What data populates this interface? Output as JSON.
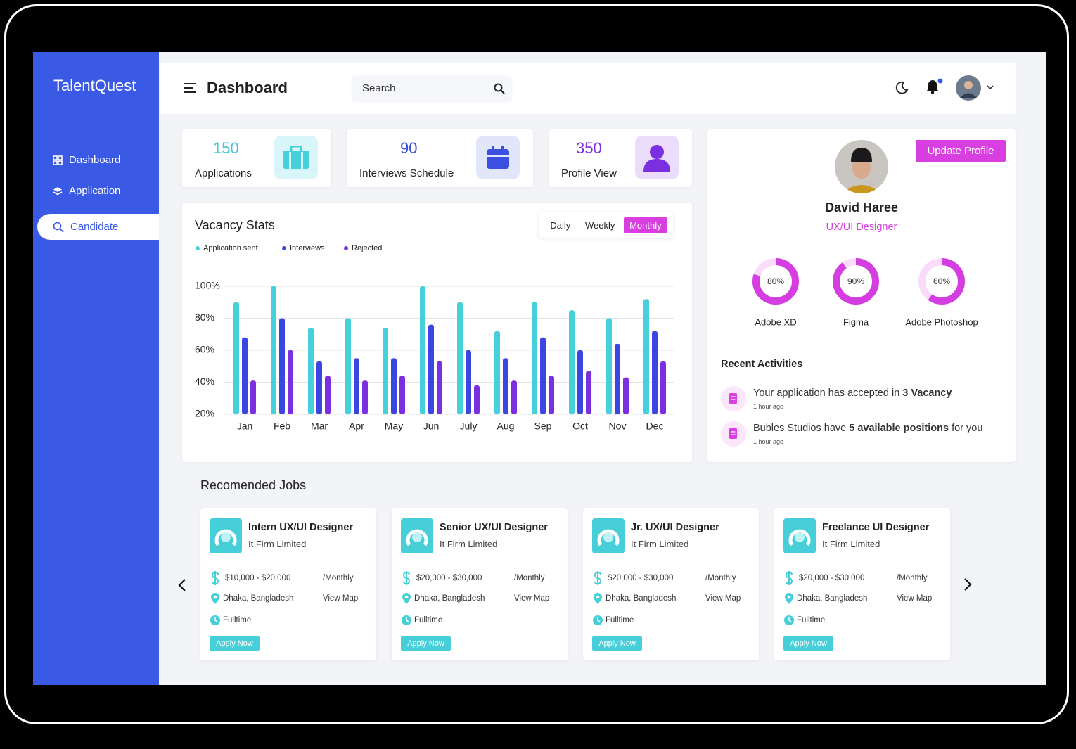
{
  "brand": "TalentQuest",
  "nav": [
    "Dashboard",
    "Application",
    "Candidate"
  ],
  "header": {
    "title": "Dashboard",
    "search": "Search"
  },
  "stats": [
    {
      "value": 150,
      "label": "Applications"
    },
    {
      "value": 90,
      "label": "Interviews Schedule"
    },
    {
      "value": 350,
      "label": "Profile View"
    }
  ],
  "chart_data": {
    "type": "bar",
    "title": "Vacancy Stats",
    "periods": [
      "Daily",
      "Weekly",
      "Monthly"
    ],
    "categories": [
      "Jan",
      "Feb",
      "Mar",
      "Apr",
      "May",
      "Jun",
      "July",
      "Aug",
      "Sep",
      "Oct",
      "Nov",
      "Dec"
    ],
    "series": [
      {
        "name": "Application sent",
        "color": "#45d0dc",
        "values": [
          90,
          100,
          74,
          80,
          74,
          100,
          90,
          72,
          90,
          85,
          80,
          92
        ]
      },
      {
        "name": "Interviews",
        "color": "#3d45e0",
        "values": [
          68,
          80,
          53,
          55,
          55,
          76,
          60,
          55,
          68,
          60,
          64,
          72
        ]
      },
      {
        "name": "Rejected",
        "color": "#7a2fe0",
        "values": [
          41,
          60,
          44,
          41,
          44,
          53,
          38,
          41,
          44,
          47,
          43,
          53
        ]
      }
    ],
    "ylim": [
      20,
      100
    ],
    "yticks": [
      {
        "value": 20,
        "label": "20%"
      },
      {
        "value": 40,
        "label": "40%"
      },
      {
        "value": 60,
        "label": "60%"
      },
      {
        "value": 80,
        "label": "80%"
      },
      {
        "value": 100,
        "label": "100%"
      }
    ],
    "grid": true
  },
  "profile": {
    "name": "David Haree",
    "role": "UX/UI Designer",
    "button": "Update Profile",
    "skills": [
      {
        "name": "Adobe XD",
        "value": 80,
        "label": "80%"
      },
      {
        "name": "Figma",
        "value": 90,
        "label": "90%"
      },
      {
        "name": "Adobe Photoshop",
        "value": 60,
        "label": "60%"
      }
    ]
  },
  "activities": {
    "title": "Recent Activities",
    "items": [
      {
        "text": "Your application has accepted in",
        "highlight": "3 Vacancy",
        "time": "1 hour ago"
      },
      {
        "text": "Bubles Studios have",
        "highlight": "5 available positions",
        "rest": "for you",
        "time": "1 hour ago"
      }
    ]
  },
  "jobs": {
    "title": "Recomended Jobs",
    "items": [
      {
        "title": "Intern UX/UI Designer",
        "company": "It Firm Limited",
        "salary": "$10,000 - $20,000",
        "period": "/Monthly",
        "location": "Dhaka, Bangladesh",
        "map": "View Map",
        "kind": "Fulltime",
        "button": "Apply Now"
      },
      {
        "title": "Senior UX/UI Designer",
        "company": "It Firm Limited",
        "salary": "$20,000 - $30,000",
        "period": "/Monthly",
        "location": "Dhaka, Bangladesh",
        "map": "View Map",
        "kind": "Fulltime",
        "button": "Apply Now"
      },
      {
        "title": "Jr. UX/UI Designer",
        "company": "It Firm Limited",
        "salary": "$20,000 - $30,000",
        "period": "/Monthly",
        "location": "Dhaka, Bangladesh",
        "map": "View Map",
        "kind": "Fulltime",
        "button": "Apply Now"
      },
      {
        "title": "Freelance UI Designer",
        "company": "It Firm Limited",
        "salary": "$20,000 - $30,000",
        "period": "/Monthly",
        "location": "Dhaka, Bangladesh",
        "map": "View Map",
        "kind": "Fulltime",
        "button": "Apply Now"
      }
    ]
  }
}
